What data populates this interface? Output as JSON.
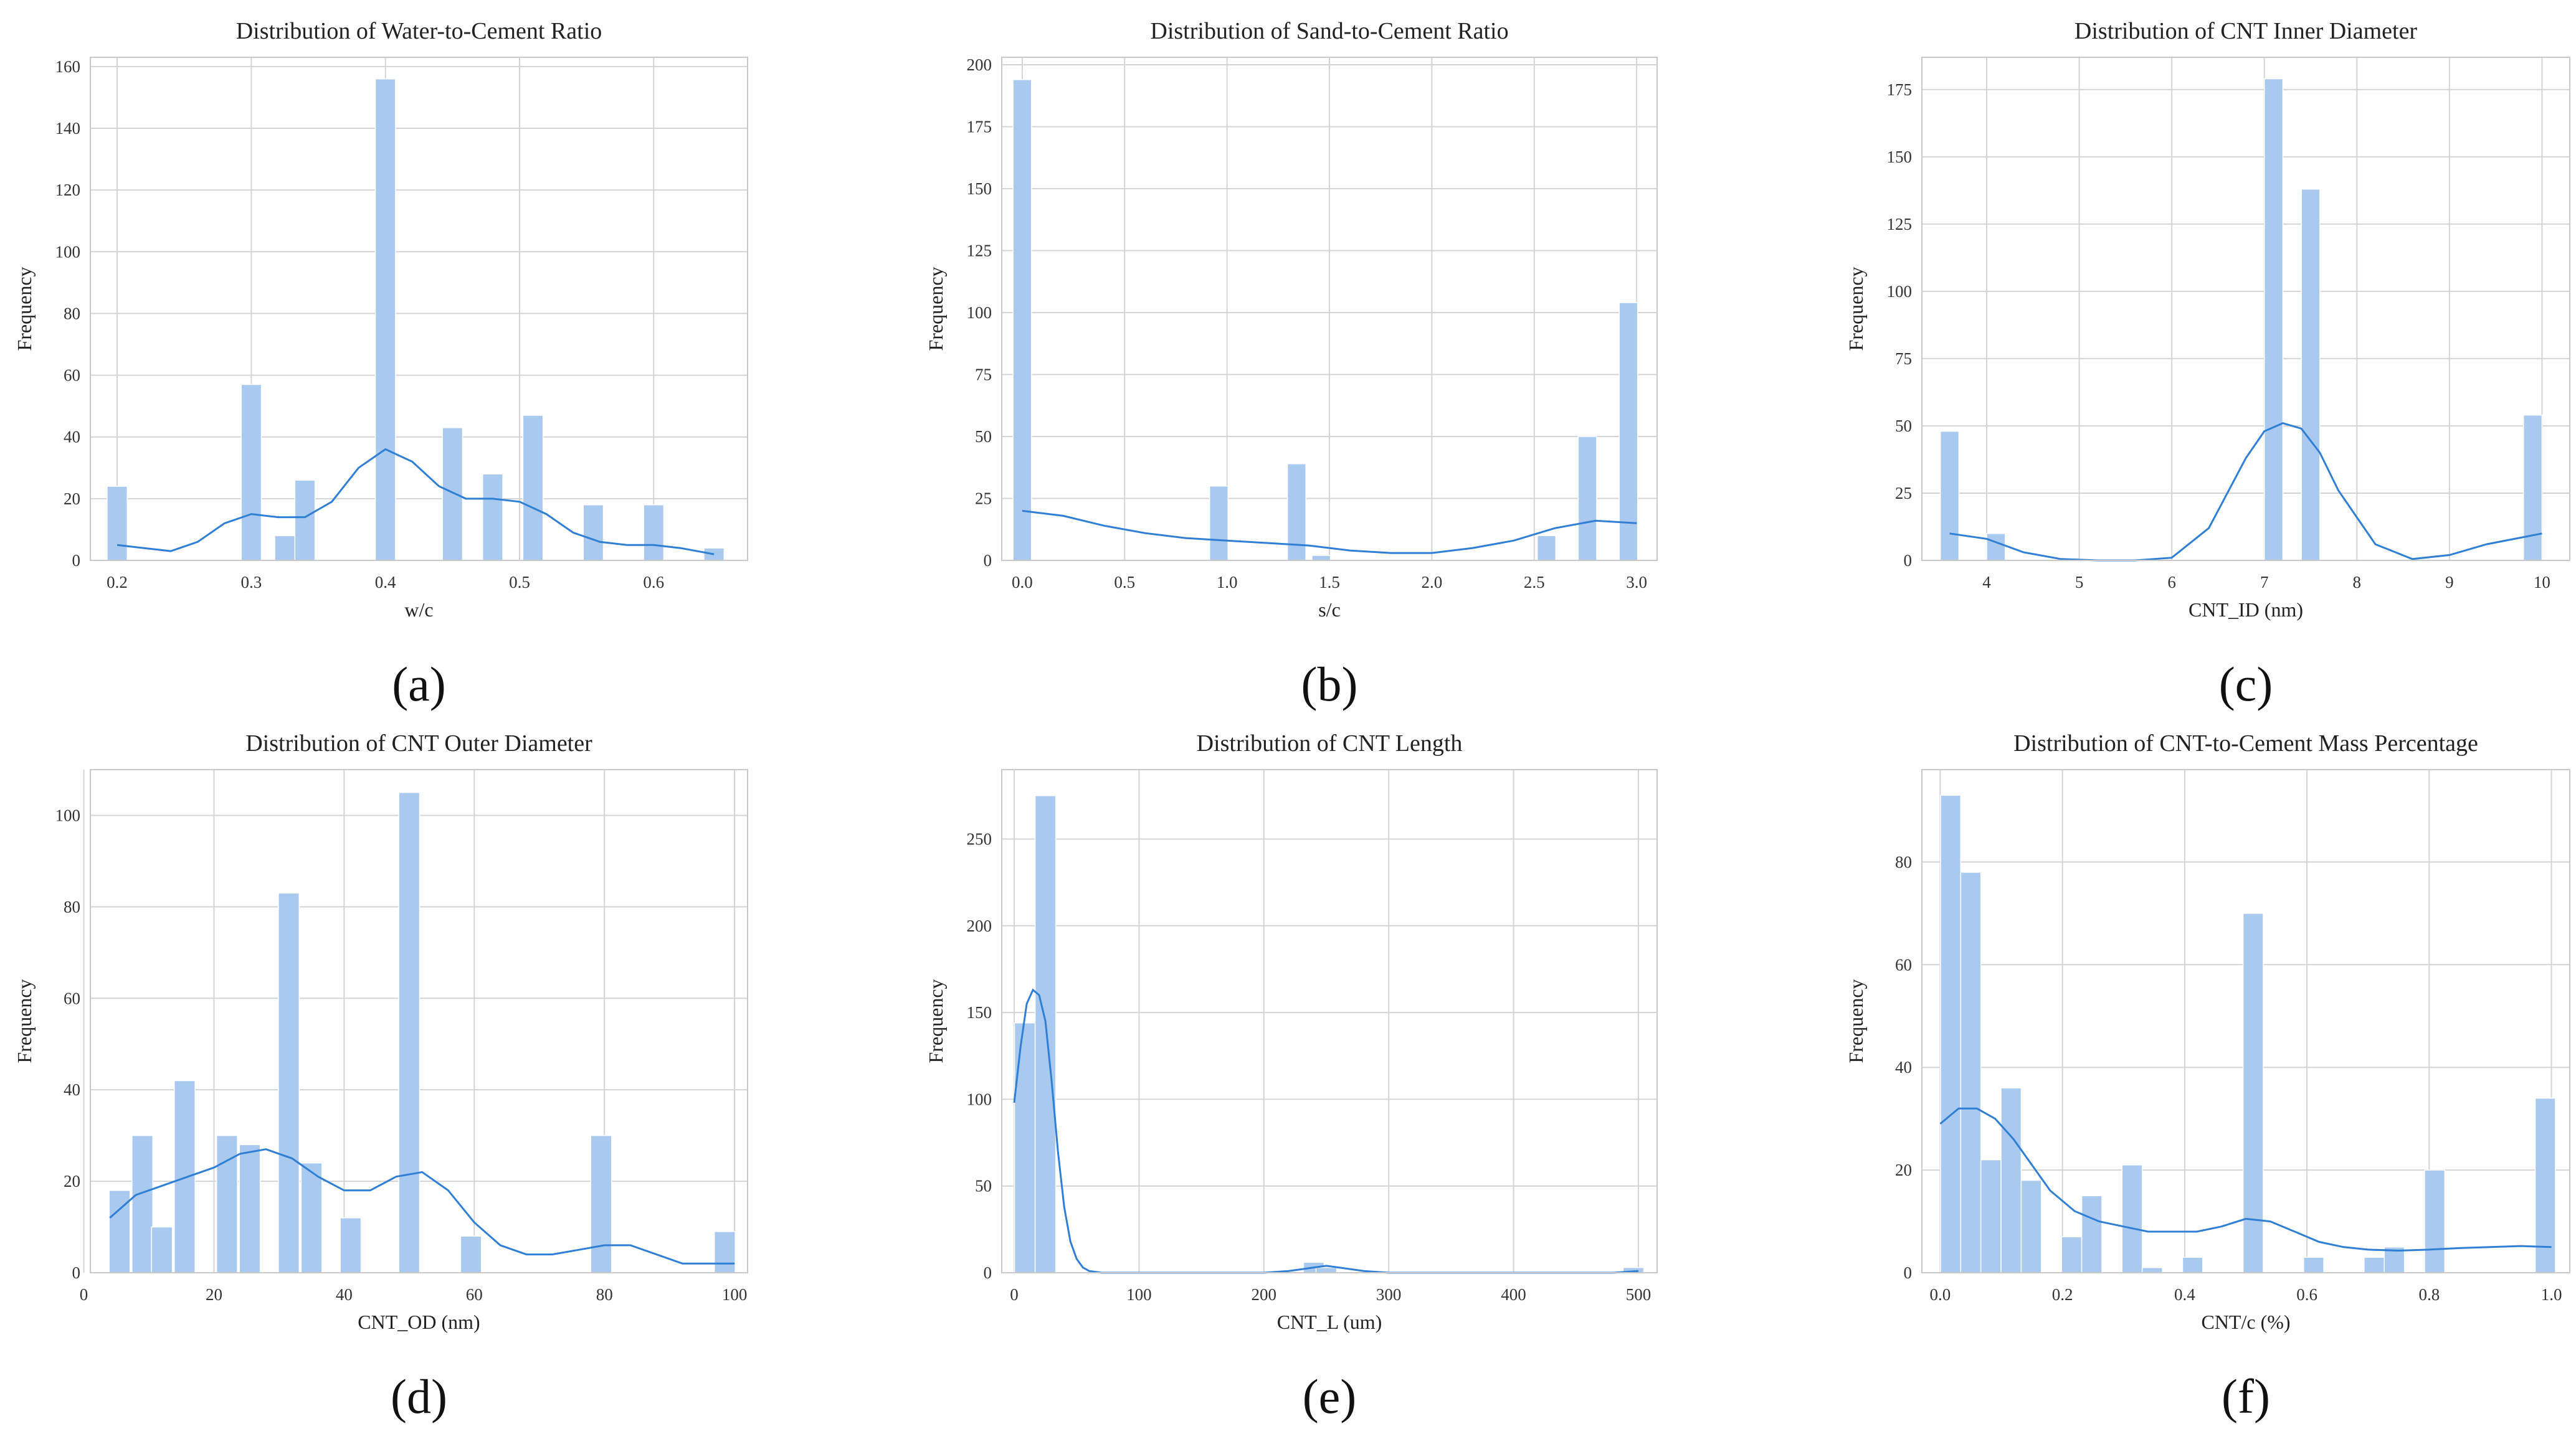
{
  "chart_data": [
    {
      "id": "a",
      "panel_label": "(a)",
      "type": "bar",
      "title": "Distribution of Water-to-Cement Ratio",
      "xlabel": "w/c",
      "ylabel": "Frequency",
      "xlim": [
        0.18,
        0.67
      ],
      "ylim": [
        0,
        163
      ],
      "xticks": [
        0.2,
        0.3,
        0.4,
        0.5,
        0.6
      ],
      "xtick_labels": [
        "0.2",
        "0.3",
        "0.4",
        "0.5",
        "0.6"
      ],
      "yticks": [
        0,
        20,
        40,
        60,
        80,
        100,
        120,
        140,
        160
      ],
      "ytick_labels": [
        "0",
        "20",
        "40",
        "60",
        "80",
        "100",
        "120",
        "140",
        "160"
      ],
      "bin_width": 0.015,
      "bins": [
        {
          "x": 0.2,
          "count": 24
        },
        {
          "x": 0.3,
          "count": 57
        },
        {
          "x": 0.325,
          "count": 8
        },
        {
          "x": 0.34,
          "count": 26
        },
        {
          "x": 0.4,
          "count": 156
        },
        {
          "x": 0.45,
          "count": 43
        },
        {
          "x": 0.48,
          "count": 28
        },
        {
          "x": 0.51,
          "count": 47
        },
        {
          "x": 0.555,
          "count": 18
        },
        {
          "x": 0.6,
          "count": 18
        },
        {
          "x": 0.645,
          "count": 4
        }
      ],
      "kde": {
        "x": [
          0.2,
          0.22,
          0.24,
          0.26,
          0.28,
          0.3,
          0.32,
          0.34,
          0.36,
          0.38,
          0.4,
          0.42,
          0.44,
          0.46,
          0.48,
          0.5,
          0.52,
          0.54,
          0.56,
          0.58,
          0.6,
          0.62,
          0.645
        ],
        "y": [
          5,
          4,
          3,
          6,
          12,
          15,
          14,
          14,
          19,
          30,
          36,
          32,
          24,
          20,
          20,
          19,
          15,
          9,
          6,
          5,
          5,
          4,
          2
        ]
      }
    },
    {
      "id": "b",
      "panel_label": "(b)",
      "type": "bar",
      "title": "Distribution of Sand-to-Cement Ratio",
      "xlabel": "s/c",
      "ylabel": "Frequency",
      "xlim": [
        -0.1,
        3.1
      ],
      "ylim": [
        0,
        203
      ],
      "xticks": [
        0.0,
        0.5,
        1.0,
        1.5,
        2.0,
        2.5,
        3.0
      ],
      "xtick_labels": [
        "0.0",
        "0.5",
        "1.0",
        "1.5",
        "2.0",
        "2.5",
        "3.0"
      ],
      "yticks": [
        0,
        25,
        50,
        75,
        100,
        125,
        150,
        175,
        200
      ],
      "ytick_labels": [
        "0",
        "25",
        "50",
        "75",
        "100",
        "125",
        "150",
        "175",
        "200"
      ],
      "bin_width": 0.09,
      "bins": [
        {
          "x": 0.0,
          "count": 194
        },
        {
          "x": 0.96,
          "count": 30
        },
        {
          "x": 1.34,
          "count": 39
        },
        {
          "x": 1.46,
          "count": 2
        },
        {
          "x": 2.56,
          "count": 10
        },
        {
          "x": 2.76,
          "count": 50
        },
        {
          "x": 2.96,
          "count": 104
        }
      ],
      "kde": {
        "x": [
          0.0,
          0.2,
          0.4,
          0.6,
          0.8,
          1.0,
          1.2,
          1.4,
          1.6,
          1.8,
          2.0,
          2.2,
          2.4,
          2.6,
          2.8,
          3.0
        ],
        "y": [
          20,
          18,
          14,
          11,
          9,
          8,
          7,
          6,
          4,
          3,
          3,
          5,
          8,
          13,
          16,
          15
        ]
      }
    },
    {
      "id": "c",
      "panel_label": "(c)",
      "type": "bar",
      "title": "Distribution of CNT Inner Diameter",
      "xlabel": "CNT_ID (nm)",
      "ylabel": "Frequency",
      "xlim": [
        3.3,
        10.3
      ],
      "ylim": [
        0,
        187
      ],
      "xticks": [
        4,
        5,
        6,
        7,
        8,
        9,
        10
      ],
      "xtick_labels": [
        "4",
        "5",
        "6",
        "7",
        "8",
        "9",
        "10"
      ],
      "yticks": [
        0,
        25,
        50,
        75,
        100,
        125,
        150,
        175
      ],
      "ytick_labels": [
        "0",
        "25",
        "50",
        "75",
        "100",
        "125",
        "150",
        "175"
      ],
      "bin_width": 0.2,
      "bins": [
        {
          "x": 3.6,
          "count": 48
        },
        {
          "x": 4.1,
          "count": 10
        },
        {
          "x": 7.1,
          "count": 179
        },
        {
          "x": 7.5,
          "count": 138
        },
        {
          "x": 9.9,
          "count": 54
        }
      ],
      "kde": {
        "x": [
          3.6,
          4.0,
          4.4,
          4.8,
          5.2,
          5.6,
          6.0,
          6.4,
          6.8,
          7.0,
          7.2,
          7.4,
          7.6,
          7.8,
          8.2,
          8.6,
          9.0,
          9.4,
          10.0
        ],
        "y": [
          10,
          8,
          3,
          0.5,
          0,
          0,
          1,
          12,
          38,
          48,
          51,
          49,
          40,
          26,
          6,
          0.5,
          2,
          6,
          10
        ]
      }
    },
    {
      "id": "d",
      "panel_label": "(d)",
      "type": "bar",
      "title": "Distribution of CNT Outer Diameter",
      "xlabel": "CNT_OD (nm)",
      "ylabel": "Frequency",
      "xlim": [
        1,
        102
      ],
      "ylim": [
        0,
        110
      ],
      "xticks": [
        0,
        20,
        40,
        60,
        80,
        100
      ],
      "xtick_labels": [
        "0",
        "20",
        "40",
        "60",
        "80",
        "100"
      ],
      "yticks": [
        0,
        20,
        40,
        60,
        80,
        100
      ],
      "ytick_labels": [
        "0",
        "20",
        "40",
        "60",
        "80",
        "100"
      ],
      "bin_width": 3.2,
      "bins": [
        {
          "x": 5.5,
          "count": 18
        },
        {
          "x": 9,
          "count": 30
        },
        {
          "x": 12,
          "count": 10
        },
        {
          "x": 15.5,
          "count": 42
        },
        {
          "x": 22,
          "count": 30
        },
        {
          "x": 25.5,
          "count": 28
        },
        {
          "x": 31.5,
          "count": 83
        },
        {
          "x": 35,
          "count": 24
        },
        {
          "x": 41,
          "count": 12
        },
        {
          "x": 50,
          "count": 105
        },
        {
          "x": 59.5,
          "count": 8
        },
        {
          "x": 79.5,
          "count": 30
        },
        {
          "x": 98.5,
          "count": 9
        }
      ],
      "kde": {
        "x": [
          4,
          8,
          12,
          16,
          20,
          24,
          28,
          32,
          36,
          40,
          44,
          48,
          52,
          56,
          60,
          64,
          68,
          72,
          76,
          80,
          84,
          88,
          92,
          96,
          100
        ],
        "y": [
          12,
          17,
          19,
          21,
          23,
          26,
          27,
          25,
          21,
          18,
          18,
          21,
          22,
          18,
          11,
          6,
          4,
          4,
          5,
          6,
          6,
          4,
          2,
          2,
          2
        ]
      }
    },
    {
      "id": "e",
      "panel_label": "(e)",
      "type": "bar",
      "title": "Distribution of CNT Length",
      "xlabel": "CNT_L (um)",
      "ylabel": "Frequency",
      "xlim": [
        -10,
        515
      ],
      "ylim": [
        0,
        290
      ],
      "xticks": [
        0,
        100,
        200,
        300,
        400,
        500
      ],
      "xtick_labels": [
        "0",
        "100",
        "200",
        "300",
        "400",
        "500"
      ],
      "yticks": [
        0,
        50,
        100,
        150,
        200,
        250
      ],
      "ytick_labels": [
        "0",
        "50",
        "100",
        "150",
        "200",
        "250"
      ],
      "bin_width": 16.5,
      "bins": [
        {
          "x": 8.5,
          "count": 144
        },
        {
          "x": 25,
          "count": 275
        },
        {
          "x": 240,
          "count": 6
        },
        {
          "x": 250,
          "count": 3
        },
        {
          "x": 496,
          "count": 3
        }
      ],
      "kde": {
        "x": [
          0,
          5,
          10,
          15,
          20,
          25,
          30,
          35,
          40,
          45,
          50,
          55,
          60,
          70,
          80,
          100,
          200,
          220,
          240,
          250,
          260,
          280,
          300,
          400,
          480,
          500
        ],
        "y": [
          98,
          130,
          155,
          163,
          160,
          145,
          110,
          70,
          38,
          18,
          8,
          3,
          1,
          0,
          0,
          0,
          0,
          1,
          3,
          4,
          3,
          1,
          0,
          0,
          0,
          1
        ]
      }
    },
    {
      "id": "f",
      "panel_label": "(f)",
      "type": "bar",
      "title": "Distribution of CNT-to-Cement Mass Percentage",
      "xlabel": "CNT/c (%)",
      "ylabel": "Frequency",
      "xlim": [
        -0.03,
        1.03
      ],
      "ylim": [
        0,
        98
      ],
      "xticks": [
        0.0,
        0.2,
        0.4,
        0.6,
        0.8,
        1.0
      ],
      "xtick_labels": [
        "0.0",
        "0.2",
        "0.4",
        "0.6",
        "0.8",
        "1.0"
      ],
      "yticks": [
        0,
        20,
        40,
        60,
        80
      ],
      "ytick_labels": [
        "0",
        "20",
        "40",
        "60",
        "80"
      ],
      "bin_width": 0.033,
      "bins": [
        {
          "x": 0.017,
          "count": 93
        },
        {
          "x": 0.05,
          "count": 78
        },
        {
          "x": 0.083,
          "count": 22
        },
        {
          "x": 0.116,
          "count": 36
        },
        {
          "x": 0.149,
          "count": 18
        },
        {
          "x": 0.215,
          "count": 7
        },
        {
          "x": 0.248,
          "count": 15
        },
        {
          "x": 0.314,
          "count": 21
        },
        {
          "x": 0.347,
          "count": 1
        },
        {
          "x": 0.413,
          "count": 3
        },
        {
          "x": 0.512,
          "count": 70
        },
        {
          "x": 0.611,
          "count": 3
        },
        {
          "x": 0.71,
          "count": 3
        },
        {
          "x": 0.743,
          "count": 5
        },
        {
          "x": 0.809,
          "count": 20
        },
        {
          "x": 0.99,
          "count": 34
        }
      ],
      "kde": {
        "x": [
          0.0,
          0.03,
          0.06,
          0.09,
          0.12,
          0.15,
          0.18,
          0.22,
          0.26,
          0.3,
          0.34,
          0.38,
          0.42,
          0.46,
          0.5,
          0.54,
          0.58,
          0.62,
          0.66,
          0.7,
          0.75,
          0.8,
          0.85,
          0.9,
          0.95,
          1.0
        ],
        "y": [
          29,
          32,
          32,
          30,
          26,
          21,
          16,
          12,
          10,
          9,
          8,
          8,
          8,
          9,
          10.5,
          10,
          8,
          6,
          5,
          4.5,
          4.3,
          4.5,
          4.8,
          5,
          5.2,
          5
        ]
      }
    }
  ]
}
